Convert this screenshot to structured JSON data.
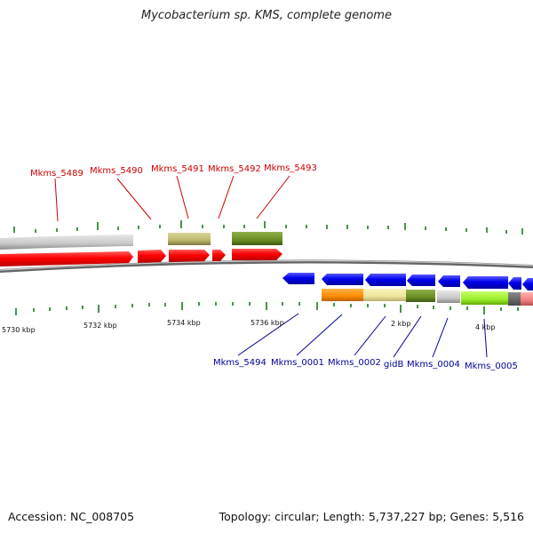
{
  "title": "Mycobacterium sp. KMS, complete genome",
  "footer": {
    "accession": "Accession: NC_008705",
    "summary": "Topology: circular; Length: 5,737,227 bp; Genes: 5,516"
  },
  "colors": {
    "forward_label": "#cc0000",
    "reverse_label": "#000099",
    "tick": "#1a7a1a",
    "backbone": "#666666"
  },
  "axis_labels": [
    "5730 kbp",
    "5732 kbp",
    "5734 kbp",
    "5736 kbp",
    "2 kbp",
    "4 kbp"
  ],
  "forward_genes": [
    {
      "label": "Mkms_5489"
    },
    {
      "label": "Mkms_5490"
    },
    {
      "label": "Mkms_5491"
    },
    {
      "label": "Mkms_5492"
    },
    {
      "label": "Mkms_5493"
    }
  ],
  "reverse_genes": [
    {
      "label": "Mkms_5494"
    },
    {
      "label": "Mkms_0001"
    },
    {
      "label": "Mkms_0002"
    },
    {
      "label": "gidB"
    },
    {
      "label": "Mkms_0004"
    },
    {
      "label": "Mkms_0005"
    }
  ]
}
